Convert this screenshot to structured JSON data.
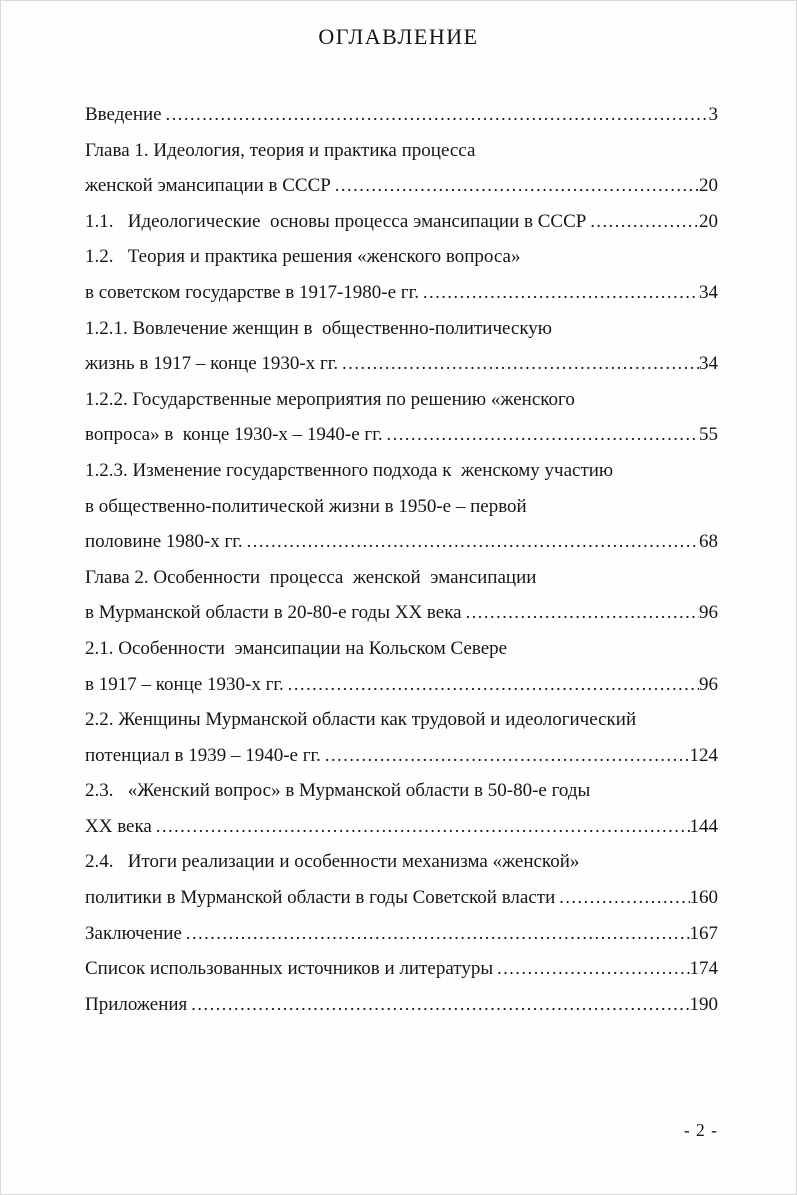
{
  "page": {
    "title": "ОГЛАВЛЕНИЕ",
    "page_number": "- 2 -"
  },
  "toc": {
    "entries": [
      {
        "text": "Введение",
        "page": "3"
      },
      {
        "text": "Глава 1. Идеология, теория и практика процесса",
        "page": ""
      },
      {
        "text": "женской эмансипации в СССР",
        "page": "20"
      },
      {
        "text": "1.1.   Идеологические  основы процесса эмансипации в СССР",
        "page": "20"
      },
      {
        "text": "1.2.   Теория и практика решения «женского вопроса»",
        "page": ""
      },
      {
        "text": "в советском государстве в 1917-1980-е гг.",
        "page": "34"
      },
      {
        "text": "1.2.1. Вовлечение женщин в  общественно-политическую",
        "page": ""
      },
      {
        "text": "жизнь в 1917 – конце 1930-х гг.",
        "page": "34"
      },
      {
        "text": "1.2.2. Государственные мероприятия по решению «женского",
        "page": ""
      },
      {
        "text": "вопроса» в  конце 1930-х – 1940-е гг.",
        "page": "55"
      },
      {
        "text": "1.2.3. Изменение государственного подхода к  женскому участию",
        "page": ""
      },
      {
        "text": "в общественно-политической жизни в 1950-е – первой",
        "page": ""
      },
      {
        "text": "половине 1980-х гг.",
        "page": "68"
      },
      {
        "text": "Глава 2. Особенности  процесса  женской  эмансипации",
        "page": ""
      },
      {
        "text": "в Мурманской области в 20-80-е годы XX века",
        "page": "96"
      },
      {
        "text": "2.1. Особенности  эмансипации на Кольском Севере",
        "page": ""
      },
      {
        "text": "в 1917 – конце 1930-х гг.",
        "page": "96"
      },
      {
        "text": "2.2. Женщины Мурманской области как трудовой и идеологический",
        "page": ""
      },
      {
        "text": "потенциал в 1939 – 1940-е гг.",
        "page": "124"
      },
      {
        "text": "2.3.   «Женский вопрос» в Мурманской области в 50-80-е годы",
        "page": ""
      },
      {
        "text": "XX века",
        "page": "144"
      },
      {
        "text": "2.4.   Итоги реализации и особенности механизма «женской»",
        "page": ""
      },
      {
        "text": "политики в Мурманской области в годы Советской власти",
        "page": "160"
      },
      {
        "text": "Заключение",
        "page": "167"
      },
      {
        "text": "Список использованных источников и литературы",
        "page": "174"
      },
      {
        "text": "Приложения",
        "page": "190"
      }
    ]
  }
}
